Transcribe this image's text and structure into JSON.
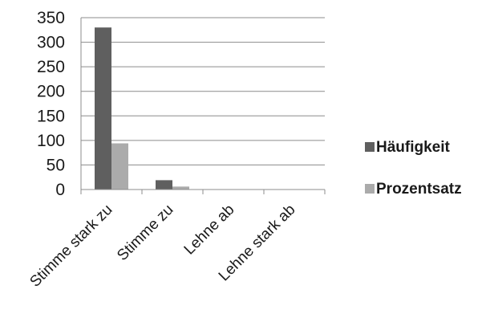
{
  "chart_data": {
    "type": "bar",
    "categories": [
      "Stimme stark zu",
      "Stimme zu",
      "Lehne ab",
      "Lehne stark ab"
    ],
    "series": [
      {
        "name": "Häufigkeit",
        "values": [
          330,
          19,
          0,
          0
        ],
        "color": "#5f5f5f"
      },
      {
        "name": "Prozentsatz",
        "values": [
          94,
          6,
          0,
          0
        ],
        "color": "#ababab"
      }
    ],
    "yticks": [
      "0",
      "50",
      "100",
      "150",
      "200",
      "250",
      "300",
      "350"
    ],
    "ylim": [
      0,
      350
    ],
    "grid": true,
    "legend_position": "right",
    "title": "",
    "xlabel": "",
    "ylabel": ""
  }
}
